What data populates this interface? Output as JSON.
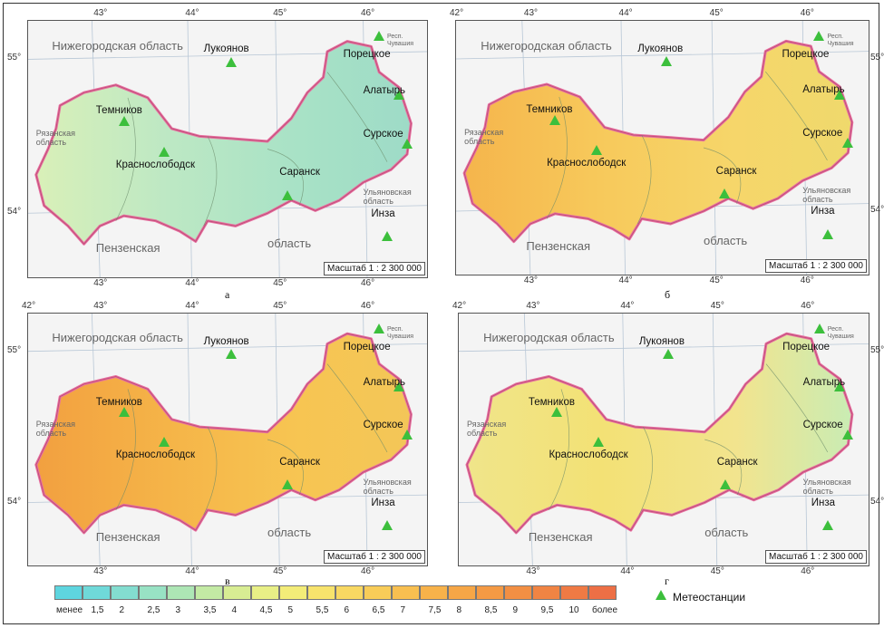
{
  "panels": [
    {
      "letter": "а",
      "scale": "Масштаб 1 : 2 300 000",
      "fill": [
        "#d9f0b8",
        "#bde8c4",
        "#a8e2c6",
        "#9edbc7"
      ]
    },
    {
      "letter": "б",
      "scale": "Масштаб 1 : 2 300 000",
      "fill": [
        "#f5b54c",
        "#f7c95b",
        "#f6d66a",
        "#efd96c"
      ]
    },
    {
      "letter": "в",
      "scale": "Масштаб 1 : 2 300 000",
      "fill": [
        "#f2a040",
        "#f5b448",
        "#f7c552",
        "#f3c658"
      ]
    },
    {
      "letter": "г",
      "scale": "Масштаб 1 : 2 300 000",
      "fill": [
        "#f0e58a",
        "#f3e175",
        "#f2e48e",
        "#c9ecb4"
      ]
    }
  ],
  "labels": {
    "nizhny": "Нижегородская область",
    "ryazan": "Рязанская\nобласть",
    "penza": "Пензенская",
    "oblast": "область",
    "ulyan": "Ульяновская\nобласть",
    "chuvash": "Респ.\nЧувашия",
    "cities": [
      "Лукоянов",
      "Порецкое",
      "Алатырь",
      "Темников",
      "Сурское",
      "Краснослободск",
      "Саранск",
      "Инза"
    ]
  },
  "coords": {
    "lon": [
      "42°",
      "43°",
      "44°",
      "45°",
      "46°"
    ],
    "lat": [
      "55°",
      "54°"
    ]
  },
  "legend": {
    "labels": [
      "менее",
      "1,5",
      "2",
      "2,5",
      "3",
      "3,5",
      "4",
      "4,5",
      "5",
      "5,5",
      "6",
      "6,5",
      "7",
      "7,5",
      "8",
      "8,5",
      "9",
      "9,5",
      "10",
      "более"
    ],
    "colors": [
      "#5ed5df",
      "#6fd9d9",
      "#83ddd0",
      "#98e2c4",
      "#ade6b5",
      "#c3eaa4",
      "#d8ed93",
      "#e8ef86",
      "#f3ec78",
      "#f7e36c",
      "#f8d862",
      "#f8cc58",
      "#f8bf50",
      "#f7b24a",
      "#f6a646",
      "#f49a44",
      "#f28f43",
      "#f08443",
      "#ef7a44",
      "#ed6f45"
    ],
    "station_label": "Метеостанции"
  }
}
